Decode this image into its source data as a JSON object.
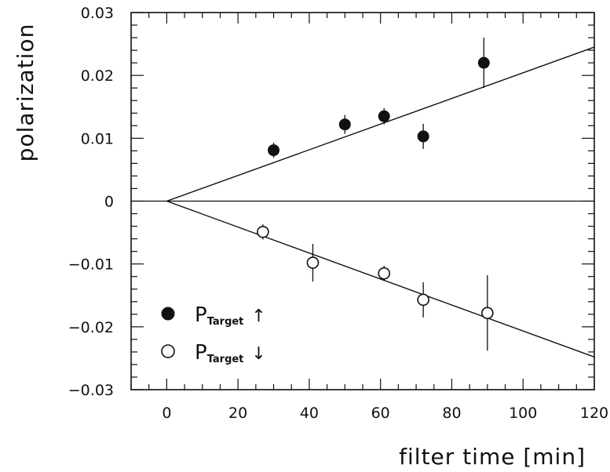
{
  "chart_data": {
    "type": "scatter",
    "xlabel": "filter time [min]",
    "ylabel": "polarization",
    "xlim": [
      -10,
      120
    ],
    "ylim": [
      -0.03,
      0.03
    ],
    "x_ticks": [
      0,
      20,
      40,
      60,
      80,
      100,
      120
    ],
    "x_tick_labels": [
      "0",
      "20",
      "40",
      "60",
      "80",
      "100",
      "120"
    ],
    "y_ticks": [
      -0.03,
      -0.02,
      -0.01,
      0,
      0.01,
      0.02,
      0.03
    ],
    "y_tick_labels": [
      "−0.03",
      "−0.02",
      "−0.01",
      "0",
      "0.01",
      "0.02",
      "0.03"
    ],
    "grid": false,
    "zero_line": true,
    "legend_position": "bottom-left",
    "series": [
      {
        "name": "P_Target ↑",
        "legend_main": "P",
        "legend_sub": "Target",
        "legend_arrow": "↑",
        "marker": "filled-circle",
        "points": [
          {
            "x": 30,
            "y": 0.0081,
            "err": 0.0012
          },
          {
            "x": 50,
            "y": 0.0122,
            "err": 0.0015
          },
          {
            "x": 61,
            "y": 0.0135,
            "err": 0.0013
          },
          {
            "x": 72,
            "y": 0.0103,
            "err": 0.002
          },
          {
            "x": 89,
            "y": 0.022,
            "err": 0.004
          }
        ],
        "fit": {
          "x": [
            0,
            120
          ],
          "y": [
            0,
            0.0245
          ]
        }
      },
      {
        "name": "P_Target ↓",
        "legend_main": "P",
        "legend_sub": "Target",
        "legend_arrow": "↓",
        "marker": "open-circle",
        "points": [
          {
            "x": 27,
            "y": -0.0049,
            "err": 0.0012
          },
          {
            "x": 41,
            "y": -0.0098,
            "err": 0.003
          },
          {
            "x": 61,
            "y": -0.0115,
            "err": 0.0012
          },
          {
            "x": 72,
            "y": -0.0157,
            "err": 0.0028
          },
          {
            "x": 90,
            "y": -0.0178,
            "err": 0.006
          }
        ],
        "fit": {
          "x": [
            0,
            120
          ],
          "y": [
            0,
            -0.0248
          ]
        }
      }
    ]
  }
}
